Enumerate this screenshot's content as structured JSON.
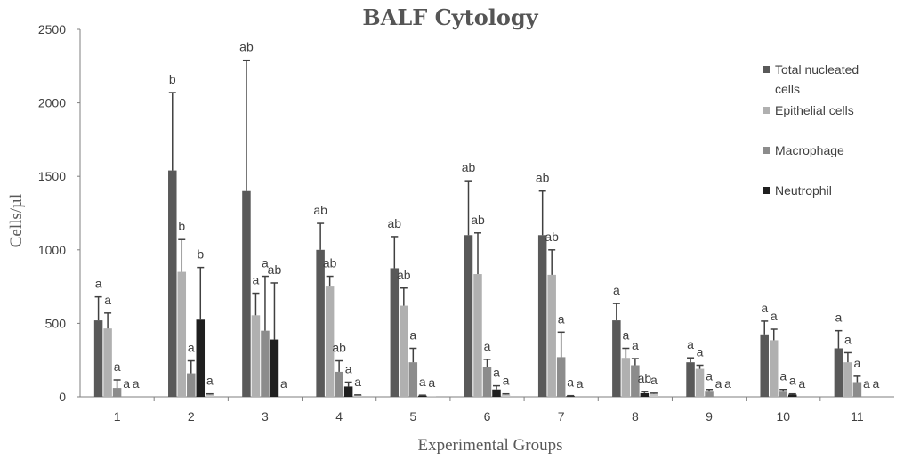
{
  "chart_data": {
    "type": "bar",
    "title": "BALF Cytology",
    "xlabel": "Experimental Groups",
    "ylabel": "Cells/µl",
    "ylim": [
      0,
      2500
    ],
    "yticks": [
      0,
      500,
      1000,
      1500,
      2000,
      2500
    ],
    "categories": [
      "1",
      "2",
      "3",
      "4",
      "5",
      "6",
      "7",
      "8",
      "9",
      "10",
      "11"
    ],
    "error_bars": "upper",
    "legend_position": "right",
    "series": [
      {
        "name": "Total nucleated cells",
        "color": "#595959",
        "values": [
          520,
          1540,
          1400,
          1000,
          875,
          1100,
          1100,
          520,
          235,
          425,
          330
        ],
        "errors": [
          160,
          530,
          890,
          180,
          215,
          370,
          300,
          115,
          30,
          90,
          120
        ],
        "sig": [
          "a",
          "b",
          "ab",
          "ab",
          "ab",
          "ab",
          "ab",
          "a",
          "a",
          "a",
          "a"
        ]
      },
      {
        "name": "Epithelial cells",
        "color": "#b0b0b0",
        "values": [
          465,
          850,
          555,
          750,
          620,
          835,
          830,
          265,
          190,
          385,
          235
        ],
        "errors": [
          105,
          220,
          150,
          70,
          120,
          280,
          170,
          65,
          25,
          75,
          65
        ],
        "sig": [
          "a",
          "b",
          "a",
          "ab",
          "ab",
          "ab",
          "ab",
          "a",
          "a",
          "a",
          "a"
        ]
      },
      {
        "name": "Macrophage",
        "color": "#8c8c8c",
        "values": [
          60,
          160,
          450,
          170,
          235,
          200,
          270,
          215,
          35,
          35,
          100
        ],
        "errors": [
          55,
          85,
          370,
          75,
          95,
          55,
          170,
          45,
          15,
          15,
          40
        ],
        "sig": [
          "a",
          "a",
          "a",
          "ab",
          "a",
          "a",
          "a",
          "a",
          "a",
          "a",
          "a"
        ]
      },
      {
        "name": "Neutrophil",
        "color": "#1f1f1f",
        "values": [
          0,
          525,
          390,
          70,
          8,
          50,
          5,
          25,
          0,
          15,
          0
        ],
        "errors": [
          0,
          355,
          385,
          30,
          3,
          25,
          3,
          10,
          0,
          5,
          0
        ],
        "sig": [
          "a",
          "b",
          "ab",
          "a",
          "a",
          "a",
          "a",
          "ab",
          "a",
          "a",
          "a"
        ]
      },
      {
        "name": "",
        "color": "#c4c4c4",
        "values": [
          0,
          15,
          0,
          10,
          5,
          15,
          0,
          20,
          0,
          0,
          0
        ],
        "errors": [
          0,
          5,
          0,
          3,
          0,
          5,
          0,
          5,
          0,
          0,
          0
        ],
        "sig": [
          "a",
          "a",
          "a",
          "a",
          "a",
          "a",
          "a",
          "a",
          "a",
          "a",
          "a"
        ]
      }
    ]
  }
}
